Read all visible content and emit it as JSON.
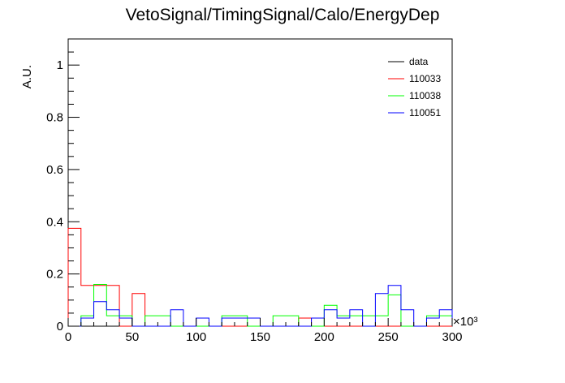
{
  "chart_data": {
    "type": "histogram",
    "title": "VetoSignal/TimingSignal/Calo/EnergyDep",
    "xlabel": "",
    "ylabel": "A.U.",
    "x_multiplier_label": "×10³",
    "xlim": [
      0,
      300000
    ],
    "ylim": [
      0,
      1.1
    ],
    "x_ticks": [
      0,
      50000,
      100000,
      150000,
      200000,
      250000,
      300000
    ],
    "x_tick_labels": [
      "0",
      "50",
      "100",
      "150",
      "200",
      "250",
      "300"
    ],
    "y_ticks": [
      0,
      0.2,
      0.4,
      0.6,
      0.8,
      1.0
    ],
    "y_tick_labels": [
      "0",
      "0.2",
      "0.4",
      "0.6",
      "0.8",
      "1"
    ],
    "bin_edges": [
      0,
      10000,
      20000,
      30000,
      40000,
      50000,
      60000,
      70000,
      80000,
      90000,
      100000,
      110000,
      120000,
      130000,
      140000,
      150000,
      160000,
      170000,
      180000,
      190000,
      200000,
      210000,
      220000,
      230000,
      240000,
      250000,
      260000,
      270000,
      280000,
      290000,
      300000
    ],
    "legend_position": "top-right",
    "series": [
      {
        "name": "data",
        "color": "#000000",
        "values": [
          0,
          0,
          0,
          0,
          0,
          0,
          0,
          0,
          0,
          0,
          0,
          0,
          0,
          0,
          0,
          0,
          0,
          0,
          0,
          0,
          0,
          0,
          0,
          0,
          0,
          0,
          0,
          0,
          0,
          0
        ]
      },
      {
        "name": "110033",
        "color": "#ff0000",
        "values": [
          0.375,
          0.156,
          0.156,
          0.156,
          0,
          0.125,
          0,
          0,
          0,
          0,
          0,
          0,
          0,
          0,
          0,
          0,
          0,
          0,
          0.031,
          0,
          0,
          0,
          0,
          0,
          0,
          0,
          0,
          0,
          0,
          0
        ]
      },
      {
        "name": "110038",
        "color": "#00ff00",
        "values": [
          0,
          0.04,
          0.16,
          0.04,
          0.04,
          0,
          0.04,
          0.04,
          0,
          0,
          0,
          0,
          0.04,
          0.04,
          0,
          0,
          0.04,
          0.04,
          0,
          0,
          0.08,
          0.04,
          0.04,
          0.04,
          0.04,
          0.12,
          0,
          0,
          0.04,
          0.04
        ]
      },
      {
        "name": "110051",
        "color": "#0000ff",
        "values": [
          0,
          0.031,
          0.094,
          0.063,
          0.031,
          0,
          0,
          0,
          0.063,
          0,
          0.031,
          0,
          0.031,
          0.031,
          0.031,
          0,
          0,
          0,
          0,
          0.031,
          0.063,
          0.031,
          0.063,
          0,
          0.125,
          0.156,
          0.063,
          0,
          0.031,
          0.063
        ]
      }
    ]
  }
}
